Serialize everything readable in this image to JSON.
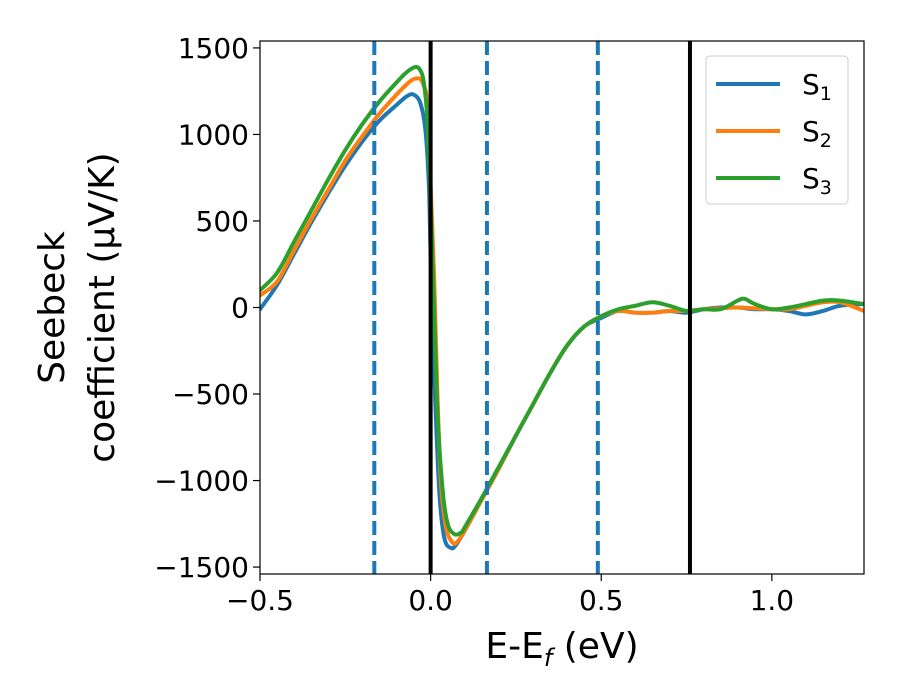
{
  "chart_data": {
    "type": "line",
    "title": "",
    "xlabel_main": "E-E",
    "xlabel_sub": "f",
    "xlabel_unit": " (eV)",
    "ylabel_line1": "Seebeck",
    "ylabel_line2": "coefficient  (μV/K)",
    "xlim": [
      -0.5,
      1.27
    ],
    "ylim": [
      -1540,
      1540
    ],
    "x_ticks": [
      -0.5,
      0.0,
      0.5,
      1.0
    ],
    "x_tick_labels": [
      "−0.5",
      "0.0",
      "0.5",
      "1.0"
    ],
    "y_ticks": [
      -1500,
      -1000,
      -500,
      0,
      500,
      1000,
      1500
    ],
    "y_tick_labels": [
      "−1500",
      "−1000",
      "−500",
      "0",
      "500",
      "1000",
      "1500"
    ],
    "grid": false,
    "legend_position": "top-right",
    "vlines_solid": [
      0.0,
      0.76
    ],
    "vlines_dashed": [
      -0.165,
      0.165,
      0.49
    ],
    "series": [
      {
        "name": "S",
        "sub": "1",
        "color": "#1f77b4",
        "x": [
          -0.5,
          -0.45,
          -0.4,
          -0.35,
          -0.3,
          -0.25,
          -0.2,
          -0.15,
          -0.1,
          -0.07,
          -0.05,
          -0.03,
          -0.015,
          -0.005,
          0.0,
          0.01,
          0.025,
          0.04,
          0.06,
          0.075,
          0.1,
          0.15,
          0.2,
          0.25,
          0.3,
          0.35,
          0.4,
          0.45,
          0.5,
          0.55,
          0.6,
          0.65,
          0.7,
          0.75,
          0.8,
          0.85,
          0.9,
          0.95,
          1.0,
          1.05,
          1.1,
          1.15,
          1.2,
          1.27
        ],
        "y": [
          -10,
          130,
          310,
          490,
          660,
          820,
          960,
          1080,
          1170,
          1220,
          1230,
          1180,
          1020,
          700,
          300,
          -350,
          -1050,
          -1330,
          -1390,
          -1370,
          -1290,
          -1110,
          -930,
          -740,
          -560,
          -380,
          -220,
          -110,
          -60,
          -20,
          -30,
          -30,
          -20,
          -30,
          -10,
          0,
          0,
          -10,
          -10,
          -20,
          -40,
          -20,
          10,
          20
        ]
      },
      {
        "name": "S",
        "sub": "2",
        "color": "#ff7f0e",
        "x": [
          -0.5,
          -0.45,
          -0.4,
          -0.35,
          -0.3,
          -0.25,
          -0.2,
          -0.15,
          -0.1,
          -0.07,
          -0.05,
          -0.03,
          -0.02,
          -0.01,
          0.0,
          0.01,
          0.02,
          0.03,
          0.045,
          0.065,
          0.08,
          0.1,
          0.15,
          0.2,
          0.25,
          0.3,
          0.35,
          0.4,
          0.45,
          0.5,
          0.55,
          0.6,
          0.65,
          0.7,
          0.75,
          0.8,
          0.85,
          0.9,
          0.95,
          1.0,
          1.05,
          1.1,
          1.15,
          1.2,
          1.27
        ],
        "y": [
          70,
          150,
          330,
          510,
          680,
          850,
          990,
          1120,
          1230,
          1290,
          1320,
          1320,
          1280,
          1180,
          700,
          200,
          -500,
          -1000,
          -1270,
          -1360,
          -1350,
          -1290,
          -1110,
          -930,
          -740,
          -560,
          -380,
          -220,
          -110,
          -50,
          -20,
          -30,
          -30,
          -20,
          -20,
          -10,
          -5,
          0,
          -5,
          -10,
          -10,
          10,
          30,
          30,
          -20
        ]
      },
      {
        "name": "S",
        "sub": "3",
        "color": "#2ca02c",
        "x": [
          -0.5,
          -0.45,
          -0.4,
          -0.35,
          -0.3,
          -0.25,
          -0.2,
          -0.15,
          -0.1,
          -0.07,
          -0.045,
          -0.03,
          -0.02,
          -0.01,
          0.0,
          0.01,
          0.02,
          0.035,
          0.05,
          0.07,
          0.09,
          0.1,
          0.15,
          0.2,
          0.25,
          0.3,
          0.35,
          0.4,
          0.45,
          0.5,
          0.55,
          0.6,
          0.65,
          0.7,
          0.75,
          0.8,
          0.85,
          0.9,
          0.92,
          0.95,
          1.0,
          1.05,
          1.1,
          1.15,
          1.2,
          1.27
        ],
        "y": [
          100,
          200,
          380,
          560,
          740,
          910,
          1060,
          1190,
          1300,
          1360,
          1390,
          1370,
          1300,
          1100,
          600,
          0,
          -600,
          -1050,
          -1250,
          -1310,
          -1300,
          -1270,
          -1100,
          -920,
          -740,
          -560,
          -380,
          -220,
          -110,
          -50,
          -10,
          10,
          30,
          10,
          -20,
          -10,
          -10,
          40,
          50,
          20,
          -10,
          0,
          20,
          40,
          40,
          20
        ]
      }
    ]
  }
}
